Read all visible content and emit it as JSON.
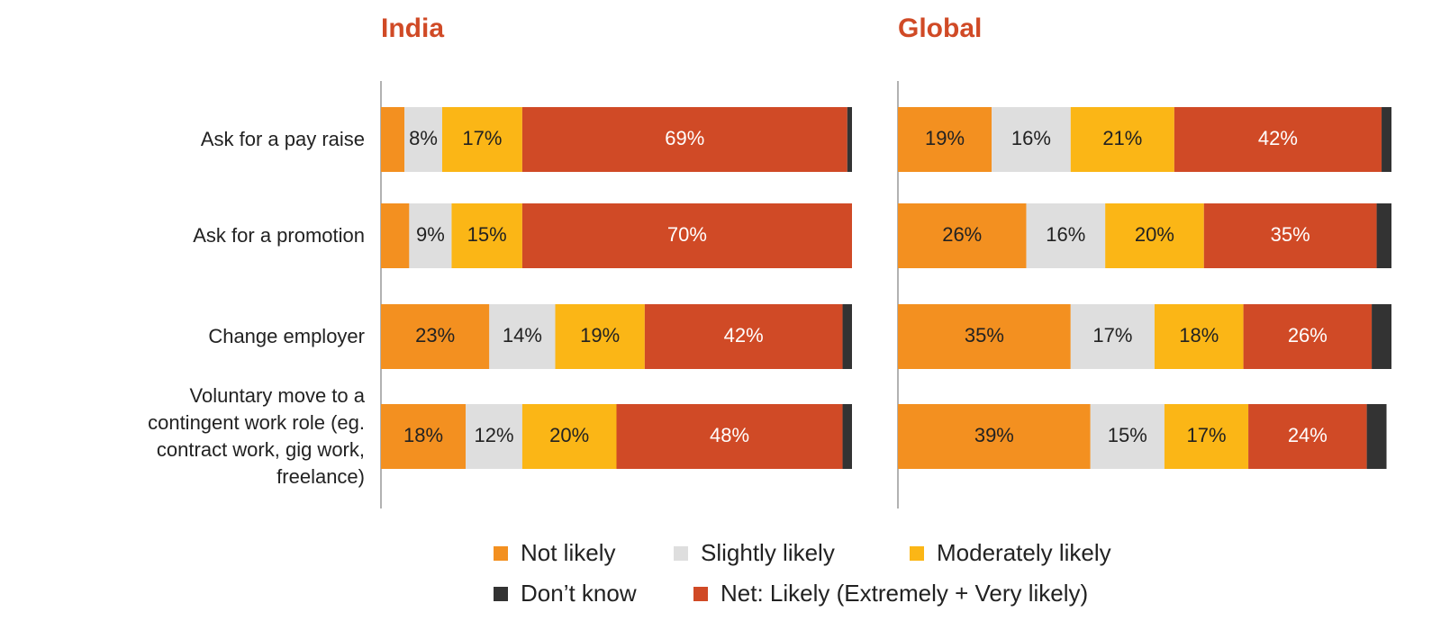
{
  "chart_data": [
    {
      "type": "bar",
      "orientation": "horizontal",
      "stacked": true,
      "title": "India",
      "categories": [
        "Ask for a pay raise",
        "Ask for a promotion",
        "Change employer",
        "Voluntary move to a contingent work role (eg. contract work, gig work, freelance)"
      ],
      "xlim": [
        0,
        100
      ],
      "series": [
        {
          "name": "Not likely",
          "color": "#f39020",
          "values": [
            5,
            6,
            23,
            18
          ],
          "value_labels": [
            null,
            null,
            "23%",
            "18%"
          ]
        },
        {
          "name": "Slightly likely",
          "color": "#dedede",
          "values": [
            8,
            9,
            14,
            12
          ],
          "value_labels": [
            "8%",
            "9%",
            "14%",
            "12%"
          ]
        },
        {
          "name": "Moderately likely",
          "color": "#fbb616",
          "values": [
            17,
            15,
            19,
            20
          ],
          "value_labels": [
            "17%",
            "15%",
            "19%",
            "20%"
          ]
        },
        {
          "name": "Net: Likely (Extremely + Very likely)",
          "color": "#d04a26",
          "values": [
            69,
            70,
            42,
            48
          ],
          "value_labels": [
            "69%",
            "70%",
            "42%",
            "48%"
          ]
        },
        {
          "name": "Don’t know",
          "color": "#333333",
          "values": [
            1,
            0,
            2,
            2
          ],
          "value_labels": [
            null,
            null,
            null,
            null
          ]
        }
      ]
    },
    {
      "type": "bar",
      "orientation": "horizontal",
      "stacked": true,
      "title": "Global",
      "xlim": [
        0,
        100
      ],
      "series": [
        {
          "color": "#f39020",
          "values": [
            19,
            26,
            35,
            39
          ],
          "value_labels": [
            "19%",
            "26%",
            "35%",
            "39%"
          ]
        },
        {
          "color": "#dedede",
          "values": [
            16,
            16,
            17,
            15
          ],
          "value_labels": [
            "16%",
            "16%",
            "17%",
            "15%"
          ]
        },
        {
          "color": "#fbb616",
          "values": [
            21,
            20,
            18,
            17
          ],
          "value_labels": [
            "21%",
            "20%",
            "18%",
            "17%"
          ]
        },
        {
          "color": "#d04a26",
          "values": [
            42,
            35,
            26,
            24
          ],
          "value_labels": [
            "42%",
            "35%",
            "26%",
            "24%"
          ]
        },
        {
          "color": "#333333",
          "values": [
            2,
            3,
            4,
            4
          ],
          "value_labels": [
            null,
            null,
            null,
            null
          ]
        }
      ]
    }
  ]
}
